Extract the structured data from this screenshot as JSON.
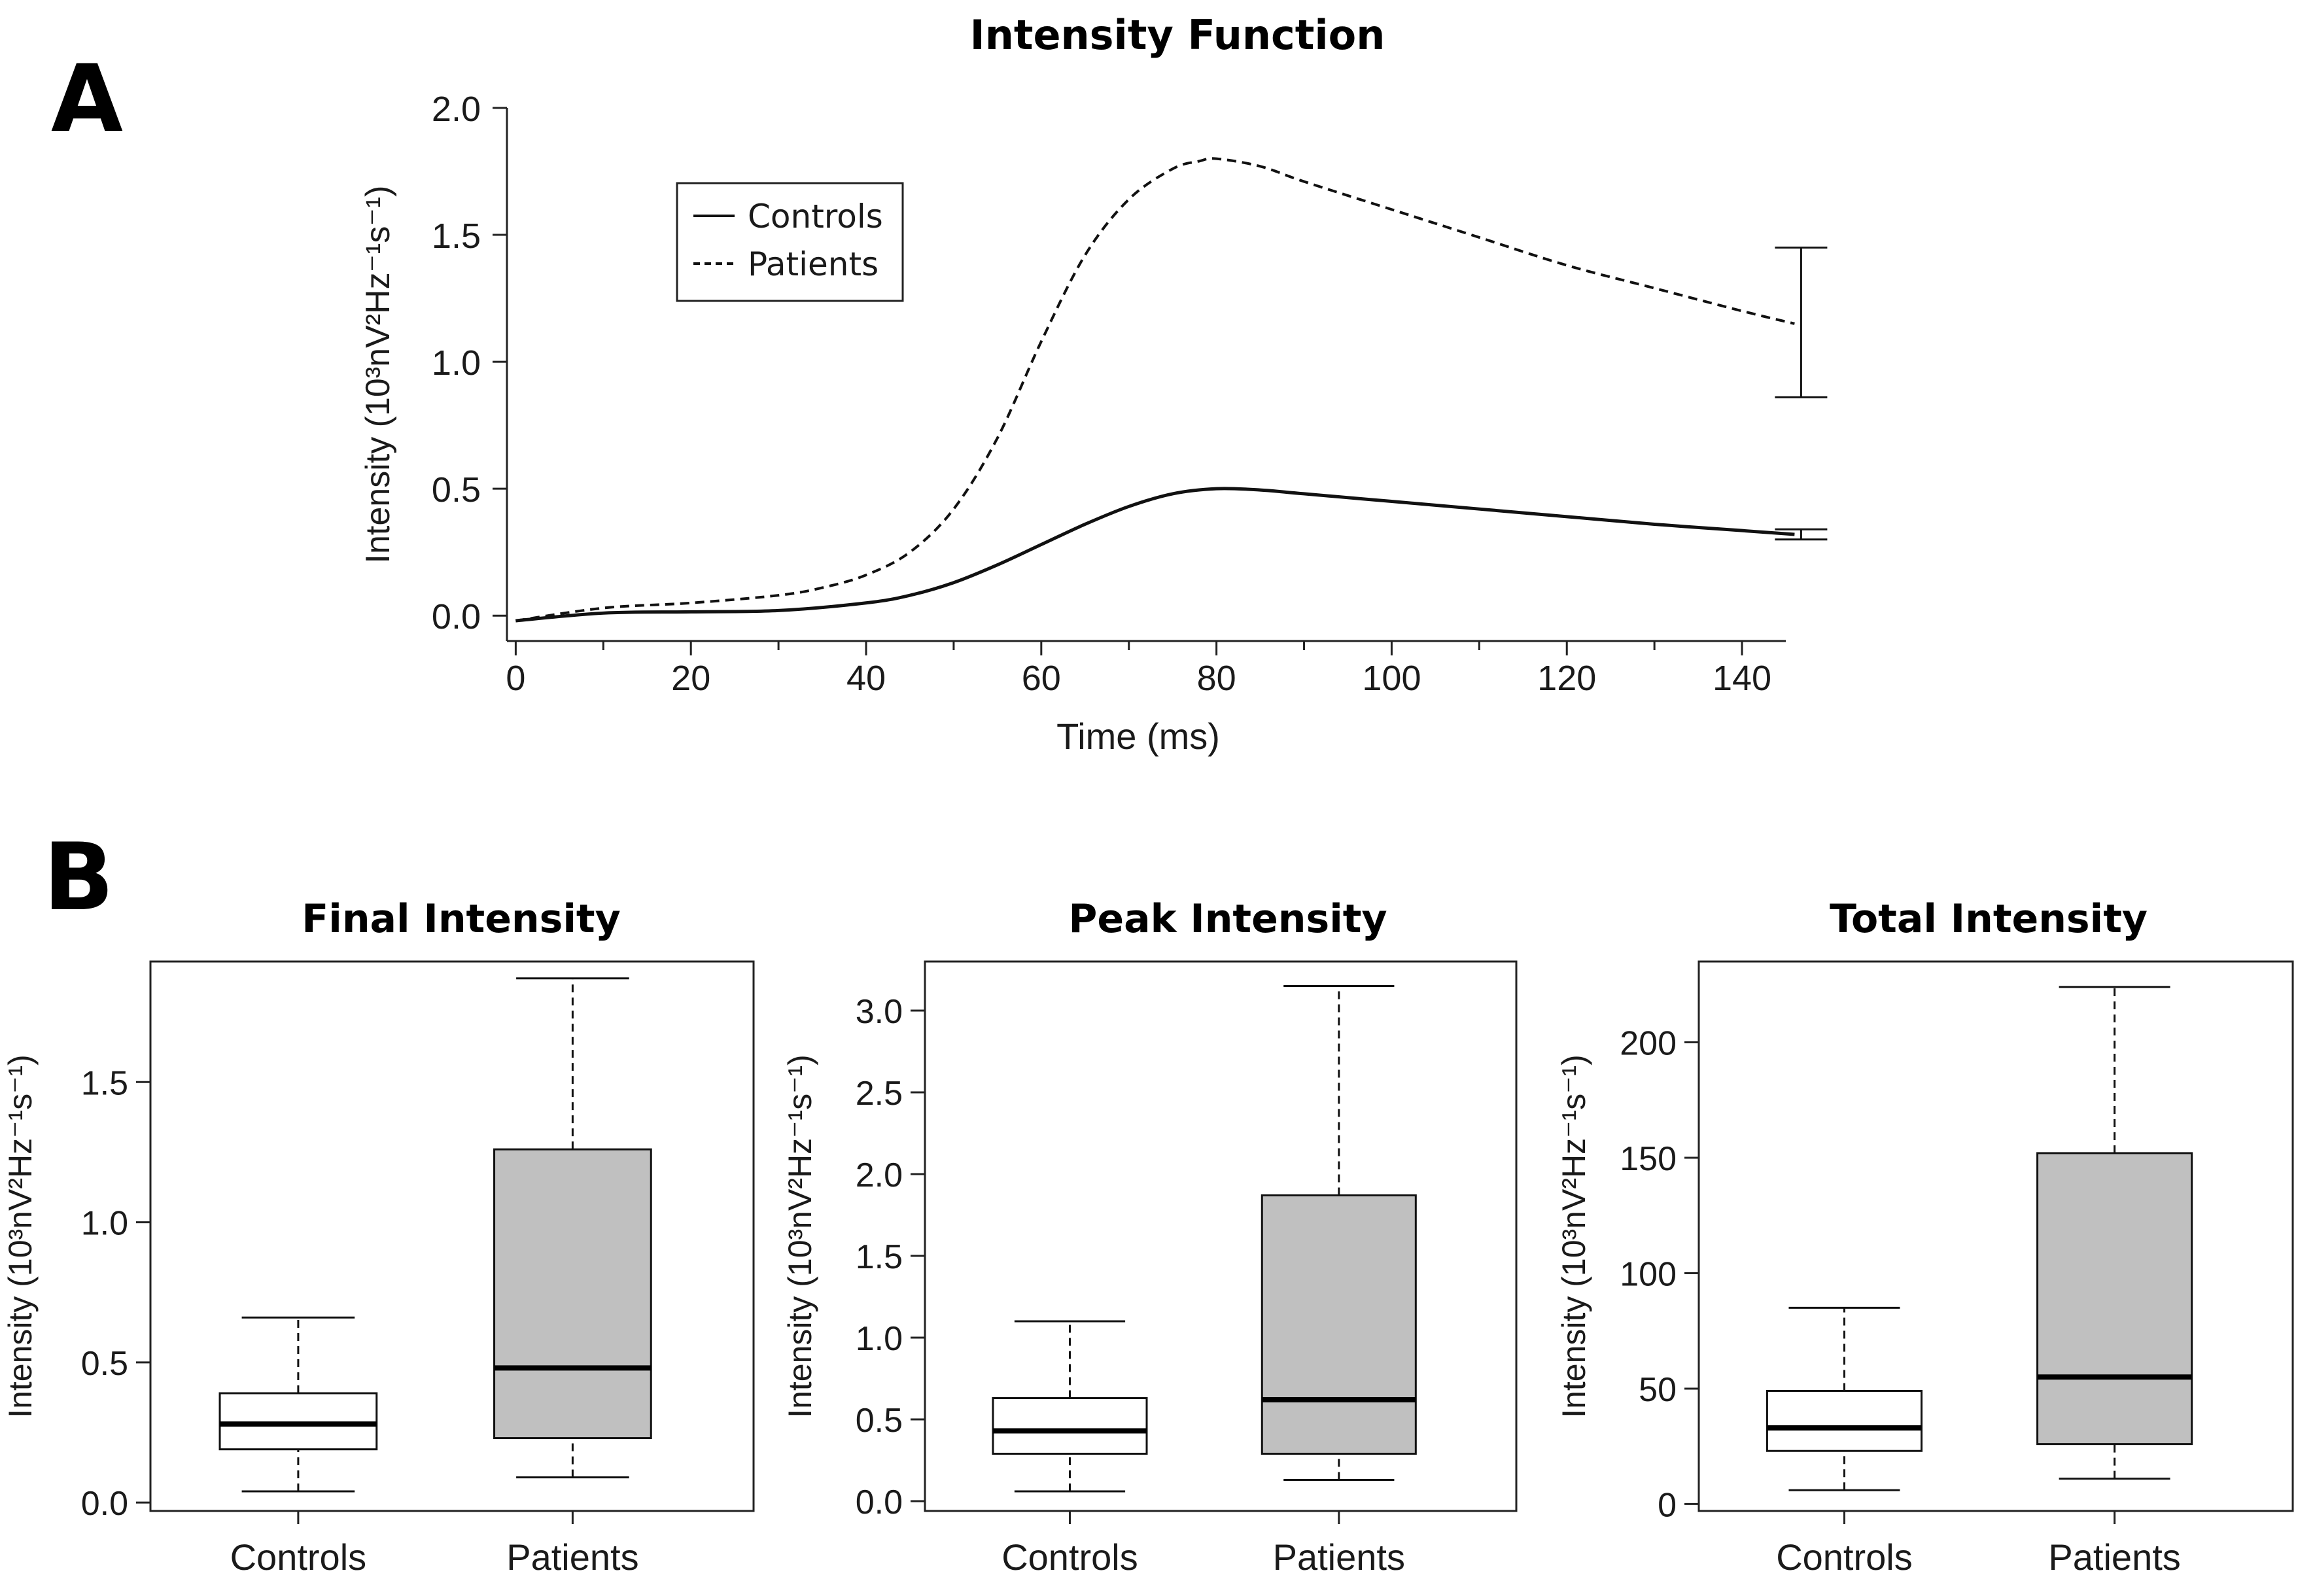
{
  "panel_labels": {
    "a": "A",
    "b": "B"
  },
  "chart_data": [
    {
      "type": "line",
      "title": "Intensity Function",
      "xlabel": "Time (ms)",
      "ylabel": "Intensity (10³nV²Hz⁻¹s⁻¹)",
      "xlim": [
        -1,
        145
      ],
      "ylim": [
        -0.1,
        2.0
      ],
      "xticks": [
        0,
        20,
        40,
        60,
        80,
        100,
        120,
        140
      ],
      "xtick_labels": [
        "0",
        "20",
        "40",
        "60",
        "80",
        "100",
        "120",
        "140"
      ],
      "yticks": [
        0.0,
        0.5,
        1.0,
        1.5,
        2.0
      ],
      "ytick_labels": [
        "0.0",
        "0.5",
        "1.0",
        "1.5",
        "2.0"
      ],
      "legend": {
        "position": "top-left",
        "entries": [
          "Controls",
          "Patients"
        ]
      },
      "series": [
        {
          "name": "Controls",
          "style": "solid",
          "x": [
            0,
            10,
            20,
            30,
            40,
            45,
            50,
            55,
            60,
            65,
            70,
            75,
            80,
            85,
            90,
            100,
            110,
            120,
            130,
            140,
            146
          ],
          "values": [
            -0.02,
            0.01,
            0.015,
            0.02,
            0.05,
            0.08,
            0.13,
            0.2,
            0.28,
            0.36,
            0.43,
            0.48,
            0.5,
            0.495,
            0.48,
            0.45,
            0.42,
            0.39,
            0.36,
            0.335,
            0.32
          ],
          "error_bar": {
            "x": 146,
            "low": 0.3,
            "high": 0.34
          }
        },
        {
          "name": "Patients",
          "style": "dashed",
          "x": [
            0,
            10,
            20,
            30,
            35,
            40,
            45,
            50,
            55,
            60,
            65,
            70,
            75,
            78,
            80,
            85,
            90,
            100,
            110,
            120,
            130,
            140,
            146
          ],
          "values": [
            -0.02,
            0.03,
            0.05,
            0.08,
            0.11,
            0.16,
            0.25,
            0.42,
            0.7,
            1.08,
            1.42,
            1.64,
            1.76,
            1.79,
            1.8,
            1.77,
            1.71,
            1.6,
            1.49,
            1.38,
            1.29,
            1.2,
            1.15
          ],
          "error_bar": {
            "x": 146,
            "low": 0.86,
            "high": 1.45
          }
        }
      ]
    },
    {
      "type": "box",
      "title": "Final Intensity",
      "ylabel": "Intensity (10³nV²Hz⁻¹s⁻¹)",
      "categories": [
        "Controls",
        "Patients"
      ],
      "ylim": [
        -0.03,
        1.93
      ],
      "yticks": [
        0.0,
        0.5,
        1.0,
        1.5
      ],
      "ytick_labels": [
        "0.0",
        "0.5",
        "1.0",
        "1.5"
      ],
      "boxes": [
        {
          "name": "Controls",
          "min": 0.04,
          "q1": 0.19,
          "median": 0.28,
          "q3": 0.39,
          "max": 0.66,
          "fill": "#ffffff"
        },
        {
          "name": "Patients",
          "min": 0.09,
          "q1": 0.23,
          "median": 0.48,
          "q3": 1.26,
          "max": 1.87,
          "fill": "#c0c0c0"
        }
      ]
    },
    {
      "type": "box",
      "title": "Peak Intensity",
      "ylabel": "Intensity (10³nV²Hz⁻¹s⁻¹)",
      "categories": [
        "Controls",
        "Patients"
      ],
      "ylim": [
        -0.06,
        3.3
      ],
      "yticks": [
        0.0,
        0.5,
        1.0,
        1.5,
        2.0,
        2.5,
        3.0
      ],
      "ytick_labels": [
        "0.0",
        "0.5",
        "1.0",
        "1.5",
        "2.0",
        "2.5",
        "3.0"
      ],
      "boxes": [
        {
          "name": "Controls",
          "min": 0.06,
          "q1": 0.29,
          "median": 0.43,
          "q3": 0.63,
          "max": 1.1,
          "fill": "#ffffff"
        },
        {
          "name": "Patients",
          "min": 0.13,
          "q1": 0.29,
          "median": 0.62,
          "q3": 1.87,
          "max": 3.15,
          "fill": "#c0c0c0"
        }
      ]
    },
    {
      "type": "box",
      "title": "Total Intensity",
      "ylabel": "Intensity (10³nV²Hz⁻¹s⁻¹)",
      "categories": [
        "Controls",
        "Patients"
      ],
      "ylim": [
        -3,
        235
      ],
      "yticks": [
        0,
        50,
        100,
        150,
        200
      ],
      "ytick_labels": [
        "0",
        "50",
        "100",
        "150",
        "200"
      ],
      "boxes": [
        {
          "name": "Controls",
          "min": 6,
          "q1": 23,
          "median": 33,
          "q3": 49,
          "max": 85,
          "fill": "#ffffff"
        },
        {
          "name": "Patients",
          "min": 11,
          "q1": 26,
          "median": 55,
          "q3": 152,
          "max": 224,
          "fill": "#c0c0c0"
        }
      ]
    }
  ]
}
